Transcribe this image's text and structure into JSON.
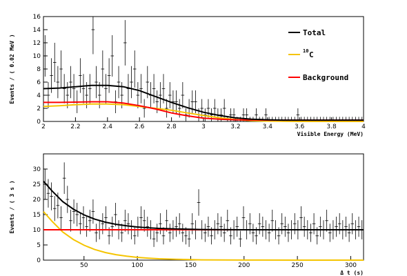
{
  "chart_data": [
    {
      "type": "line",
      "xlabel": "Visible Energy (MeV)",
      "ylabel": "Events / ( 0.02 MeV )",
      "xlim": [
        2,
        4
      ],
      "ylim": [
        0,
        16
      ],
      "x_ticks": [
        "2",
        "2.2",
        "2.4",
        "2.6",
        "2.8",
        "3",
        "3.2",
        "3.4",
        "3.6",
        "3.8",
        "4"
      ],
      "y_ticks": [
        "0",
        "2",
        "4",
        "6",
        "8",
        "10",
        "12",
        "14",
        "16"
      ],
      "legend_position": "top-right",
      "legend": [
        {
          "label": "Total",
          "color": "#000000"
        },
        {
          "label_sup": "10",
          "label": "C",
          "color": "#f5c400"
        },
        {
          "label": "Background",
          "color": "#ff0000"
        }
      ],
      "series": [
        {
          "name": "Total",
          "color": "#000000",
          "x": [
            2.0,
            2.1,
            2.2,
            2.3,
            2.4,
            2.5,
            2.6,
            2.7,
            2.8,
            2.9,
            3.0,
            3.1,
            3.2,
            3.3,
            3.4,
            3.5,
            3.6,
            3.8,
            4.0
          ],
          "y": [
            5.0,
            5.1,
            5.3,
            5.5,
            5.5,
            5.3,
            4.7,
            3.8,
            2.9,
            2.1,
            1.4,
            0.9,
            0.55,
            0.35,
            0.25,
            0.2,
            0.2,
            0.2,
            0.2
          ]
        },
        {
          "name": "10C",
          "color": "#f5c400",
          "x": [
            2.0,
            2.1,
            2.2,
            2.3,
            2.4,
            2.5,
            2.6,
            2.7,
            2.8,
            2.9,
            3.0,
            3.1,
            3.2,
            3.3,
            3.4,
            3.5,
            3.6,
            3.8,
            4.0
          ],
          "y": [
            2.3,
            2.4,
            2.55,
            2.65,
            2.65,
            2.55,
            2.3,
            2.0,
            1.7,
            1.3,
            0.9,
            0.55,
            0.3,
            0.12,
            0.05,
            0.02,
            0.0,
            0.0,
            0.0
          ]
        },
        {
          "name": "Background",
          "color": "#ff0000",
          "x": [
            2.0,
            2.1,
            2.2,
            2.3,
            2.4,
            2.5,
            2.6,
            2.7,
            2.8,
            2.9,
            3.0,
            3.1,
            3.2,
            3.3,
            3.4,
            3.5,
            3.6,
            3.8,
            4.0
          ],
          "y": [
            2.9,
            2.9,
            2.95,
            3.0,
            3.0,
            2.8,
            2.4,
            1.9,
            1.3,
            0.85,
            0.5,
            0.35,
            0.25,
            0.22,
            0.2,
            0.2,
            0.2,
            0.2,
            0.2
          ]
        }
      ],
      "points": {
        "x": [
          2.01,
          2.03,
          2.05,
          2.07,
          2.09,
          2.11,
          2.13,
          2.15,
          2.17,
          2.19,
          2.21,
          2.23,
          2.25,
          2.27,
          2.29,
          2.31,
          2.33,
          2.35,
          2.37,
          2.39,
          2.41,
          2.43,
          2.45,
          2.47,
          2.49,
          2.51,
          2.53,
          2.55,
          2.57,
          2.59,
          2.61,
          2.63,
          2.65,
          2.67,
          2.69,
          2.71,
          2.73,
          2.75,
          2.77,
          2.79,
          2.81,
          2.83,
          2.85,
          2.87,
          2.89,
          2.91,
          2.93,
          2.95,
          2.97,
          2.99,
          3.01,
          3.03,
          3.05,
          3.07,
          3.09,
          3.11,
          3.13,
          3.15,
          3.17,
          3.19,
          3.21,
          3.23,
          3.25,
          3.27,
          3.29,
          3.31,
          3.33,
          3.35,
          3.37,
          3.39,
          3.41,
          3.43,
          3.45,
          3.47,
          3.49,
          3.51,
          3.53,
          3.55,
          3.57,
          3.59,
          3.61,
          3.63,
          3.65,
          3.67,
          3.69,
          3.71,
          3.73,
          3.75,
          3.77,
          3.79,
          3.81,
          3.83,
          3.85,
          3.87,
          3.89,
          3.91,
          3.93,
          3.95,
          3.97,
          3.99
        ],
        "y": [
          10,
          4,
          7,
          9,
          6,
          8,
          5,
          4,
          6,
          5,
          3,
          7,
          5,
          4,
          5,
          14,
          6,
          4,
          8,
          5,
          7,
          10,
          3,
          6,
          4,
          12,
          5,
          6,
          8,
          4,
          5,
          2,
          6,
          4,
          5,
          3,
          4,
          5,
          2,
          4,
          3,
          3,
          2,
          4,
          1,
          2,
          3,
          3,
          1,
          2,
          1,
          2,
          1,
          2,
          1,
          1,
          2,
          0,
          1,
          1,
          0,
          0,
          1,
          1,
          0,
          0,
          1,
          0,
          0,
          1,
          0,
          0,
          0,
          0,
          0,
          0,
          0,
          0,
          0,
          1,
          0,
          0,
          0,
          0,
          0,
          0,
          0,
          0,
          0,
          0,
          0,
          0,
          0,
          0,
          0,
          0,
          0,
          0,
          0,
          0
        ]
      }
    },
    {
      "type": "line",
      "xlabel": "Δ t (s)",
      "ylabel": "Events / ( 3 s )",
      "xlim": [
        12,
        312
      ],
      "ylim": [
        0,
        35
      ],
      "x_ticks": [
        "50",
        "100",
        "150",
        "200",
        "250",
        "300"
      ],
      "y_ticks": [
        "0",
        "5",
        "10",
        "15",
        "20",
        "25",
        "30"
      ],
      "series": [
        {
          "name": "Total",
          "color": "#000000",
          "x": [
            12,
            20,
            30,
            40,
            50,
            60,
            70,
            80,
            90,
            100,
            110,
            120,
            140,
            160,
            200,
            250,
            312
          ],
          "y": [
            26,
            22.8,
            19.3,
            16.8,
            14.9,
            13.5,
            12.5,
            11.8,
            11.3,
            10.9,
            10.65,
            10.45,
            10.25,
            10.1,
            10.0,
            10.0,
            10.0
          ]
        },
        {
          "name": "10C",
          "color": "#f5c400",
          "x": [
            12,
            20,
            30,
            40,
            50,
            60,
            70,
            80,
            90,
            100,
            110,
            120,
            140,
            160,
            200,
            250,
            312
          ],
          "y": [
            16,
            12.8,
            9.3,
            6.8,
            4.9,
            3.5,
            2.5,
            1.8,
            1.3,
            0.9,
            0.65,
            0.45,
            0.25,
            0.1,
            0.02,
            0.0,
            0.0
          ]
        },
        {
          "name": "Background",
          "color": "#ff0000",
          "x": [
            12,
            312
          ],
          "y": [
            10,
            10
          ]
        }
      ],
      "points": {
        "x": [
          13.5,
          16.5,
          19.5,
          22.5,
          25.5,
          28.5,
          31.5,
          34.5,
          37.5,
          40.5,
          43.5,
          46.5,
          49.5,
          52.5,
          55.5,
          58.5,
          61.5,
          64.5,
          67.5,
          70.5,
          73.5,
          76.5,
          79.5,
          82.5,
          85.5,
          88.5,
          91.5,
          94.5,
          97.5,
          100.5,
          103.5,
          106.5,
          109.5,
          112.5,
          115.5,
          118.5,
          121.5,
          124.5,
          127.5,
          130.5,
          133.5,
          136.5,
          139.5,
          142.5,
          145.5,
          148.5,
          151.5,
          154.5,
          157.5,
          160.5,
          163.5,
          166.5,
          169.5,
          172.5,
          175.5,
          178.5,
          181.5,
          184.5,
          187.5,
          190.5,
          193.5,
          196.5,
          199.5,
          202.5,
          205.5,
          208.5,
          211.5,
          214.5,
          217.5,
          220.5,
          223.5,
          226.5,
          229.5,
          232.5,
          235.5,
          238.5,
          241.5,
          244.5,
          247.5,
          250.5,
          253.5,
          256.5,
          259.5,
          262.5,
          265.5,
          268.5,
          271.5,
          274.5,
          277.5,
          280.5,
          283.5,
          286.5,
          289.5,
          292.5,
          295.5,
          298.5,
          301.5,
          304.5,
          307.5,
          310.5
        ],
        "y": [
          25,
          22,
          21,
          17,
          18,
          14,
          27,
          20,
          13,
          16,
          15,
          12,
          14,
          11,
          13,
          16,
          9,
          10,
          12,
          14,
          8,
          11,
          15,
          10,
          9,
          13,
          12,
          10,
          8,
          11,
          14,
          13,
          11,
          10,
          7,
          9,
          12,
          8,
          13,
          9,
          10,
          11,
          12,
          9,
          8,
          7,
          12,
          10,
          19,
          10,
          9,
          11,
          8,
          10,
          12,
          11,
          9,
          13,
          8,
          10,
          11,
          7,
          14,
          10,
          12,
          9,
          8,
          12,
          11,
          10,
          9,
          13,
          10,
          8,
          12,
          11,
          9,
          10,
          12,
          10,
          14,
          11,
          10,
          9,
          12,
          8,
          11,
          10,
          13,
          9,
          10,
          11,
          12,
          10,
          11,
          9,
          12,
          10,
          11,
          10
        ]
      }
    }
  ]
}
